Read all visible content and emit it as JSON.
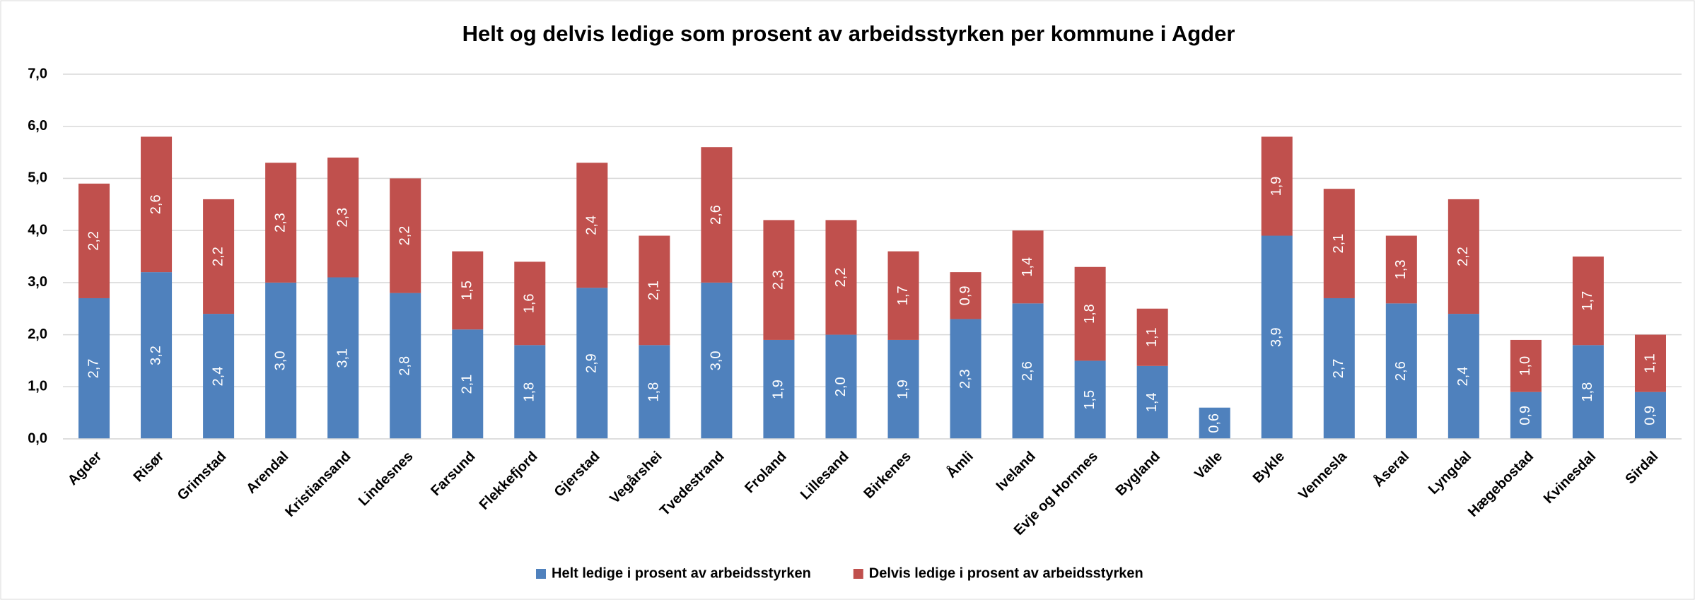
{
  "chart_data": {
    "type": "stacked_bar",
    "title": "Helt og delvis ledige som prosent av arbeidsstyrken per kommune i Agder",
    "categories": [
      "Agder",
      "Risør",
      "Grimstad",
      "Arendal",
      "Kristiansand",
      "Lindesnes",
      "Farsund",
      "Flekkefjord",
      "Gjerstad",
      "Vegårshei",
      "Tvedestrand",
      "Froland",
      "Lillesand",
      "Birkenes",
      "Åmli",
      "Iveland",
      "Evje og Hornnes",
      "Bygland",
      "Valle",
      "Bykle",
      "Vennesla",
      "Åseral",
      "Lyngdal",
      "Hægebostad",
      "Kvinesdal",
      "Sirdal"
    ],
    "series": [
      {
        "name": "Helt ledige i prosent av arbeidsstyrken",
        "color": "#4f81bd",
        "values": [
          2.7,
          3.2,
          2.4,
          3.0,
          3.1,
          2.8,
          2.1,
          1.8,
          2.9,
          1.8,
          3.0,
          1.9,
          2.0,
          1.9,
          2.3,
          2.6,
          1.5,
          1.4,
          0.6,
          3.9,
          2.7,
          2.6,
          2.4,
          0.9,
          1.8,
          0.9
        ],
        "value_labels": [
          "2,7",
          "3,2",
          "2,4",
          "3,0",
          "3,1",
          "2,8",
          "2,1",
          "1,8",
          "2,9",
          "1,8",
          "3,0",
          "1,9",
          "2,0",
          "1,9",
          "2,3",
          "2,6",
          "1,5",
          "1,4",
          "0,6",
          "3,9",
          "2,7",
          "2,6",
          "2,4",
          "0,9",
          "1,8",
          "0,9"
        ]
      },
      {
        "name": "Delvis ledige i prosent av arbeidsstyrken",
        "color": "#c0504d",
        "values": [
          2.2,
          2.6,
          2.2,
          2.3,
          2.3,
          2.2,
          1.5,
          1.6,
          2.4,
          2.1,
          2.6,
          2.3,
          2.2,
          1.7,
          0.9,
          1.4,
          1.8,
          1.1,
          null,
          1.9,
          2.1,
          1.3,
          2.2,
          1.0,
          1.7,
          1.1
        ],
        "value_labels": [
          "2,2",
          "2,6",
          "2,2",
          "2,3",
          "2,3",
          "2,2",
          "1,5",
          "1,6",
          "2,4",
          "2,1",
          "2,6",
          "2,3",
          "2,2",
          "1,7",
          "0,9",
          "1,4",
          "1,8",
          "1,1",
          null,
          "1,9",
          "2,1",
          "1,3",
          "2,2",
          "1,0",
          "1,7",
          "1,1"
        ]
      }
    ],
    "ylim": [
      0,
      7
    ],
    "yticks": [
      {
        "value": 0,
        "label": "0,0"
      },
      {
        "value": 1,
        "label": "1,0"
      },
      {
        "value": 2,
        "label": "2,0"
      },
      {
        "value": 3,
        "label": "3,0"
      },
      {
        "value": 4,
        "label": "4,0"
      },
      {
        "value": 5,
        "label": "5,0"
      },
      {
        "value": 6,
        "label": "6,0"
      },
      {
        "value": 7,
        "label": "7,0"
      }
    ],
    "grid": true,
    "legend": "bottom"
  }
}
